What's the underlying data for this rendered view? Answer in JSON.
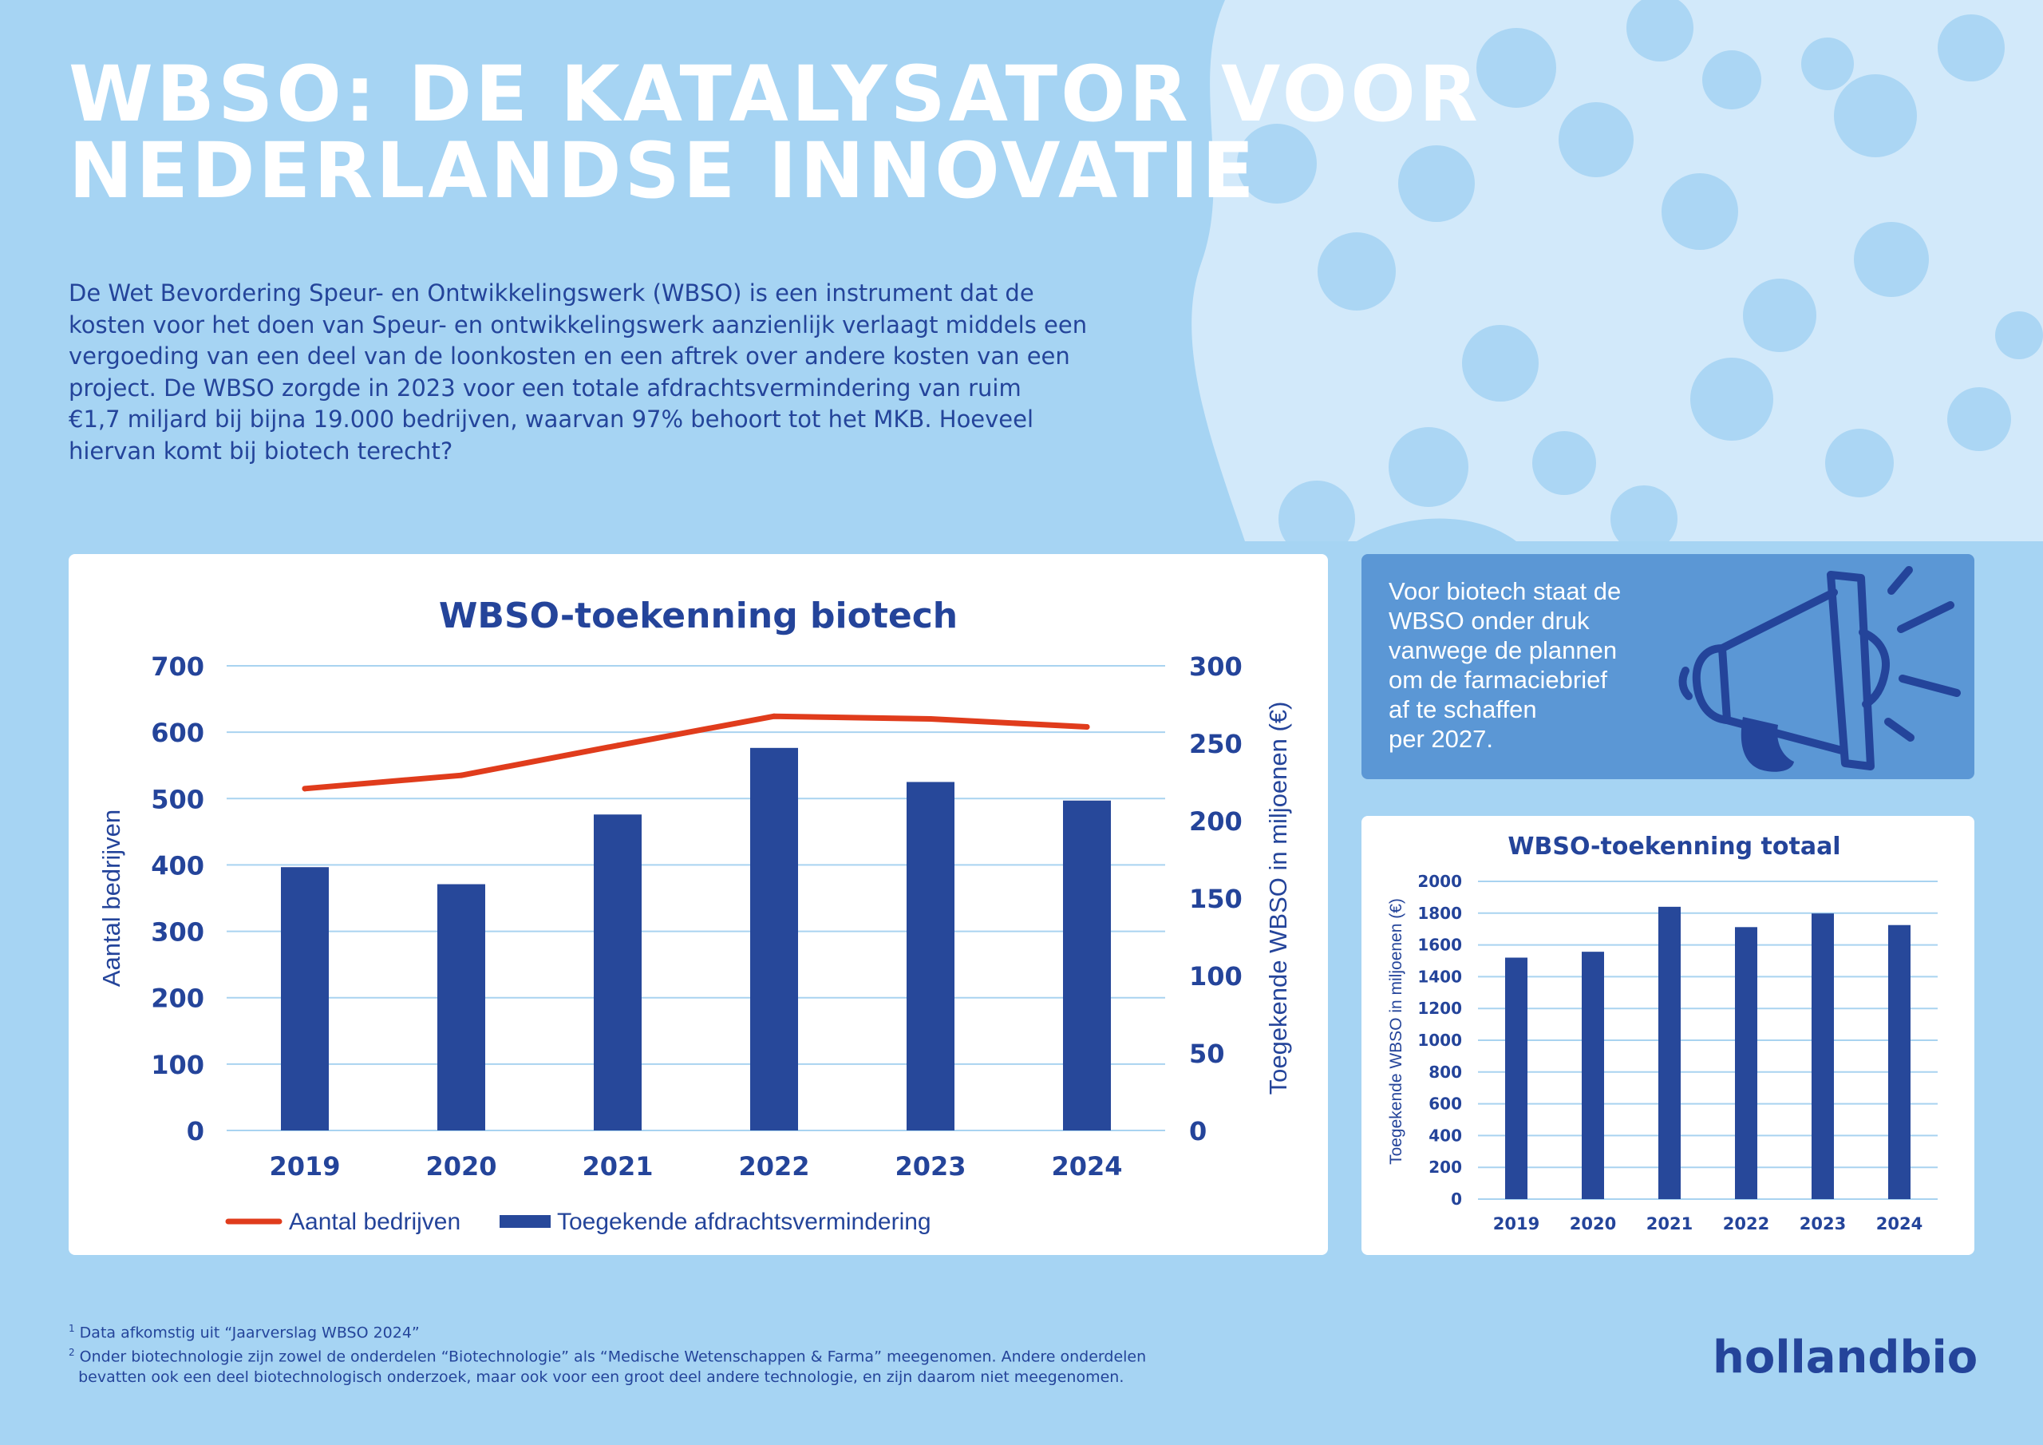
{
  "header": {
    "title_lines": [
      "WBSO: DE KATALYSATOR VOOR",
      "NEDERLANDSE INNOVATIE"
    ],
    "intro_lines": [
      "De Wet Bevordering Speur- en Ontwikkelingswerk (WBSO) is een instrument dat de",
      "kosten voor het doen van Speur- en ontwikkelingswerk aanzienlijk verlaagt middels een",
      "vergoeding van een deel van de loonkosten en een aftrek over andere kosten van een",
      "project. De WBSO zorgde in 2023 voor een totale afdrachtsvermindering van ruim",
      "€1,7 miljard bij bijna 19.000 bedrijven, waarvan 97% behoort tot het MKB. Hoeveel",
      "hiervan komt bij biotech terecht?"
    ]
  },
  "callout": {
    "lines": [
      "Voor biotech staat de",
      "WBSO onder druk",
      "vanwege de plannen",
      "om de farmaciebrief",
      "af te schaffen",
      "per 2027."
    ],
    "icon": "megaphone-icon"
  },
  "footnotes": [
    {
      "marker": "1",
      "lines": [
        "Data afkomstig uit “Jaarverslag WBSO 2024”"
      ]
    },
    {
      "marker": "2",
      "lines": [
        "Onder biotechnologie zijn zowel de onderdelen “Biotechnologie” als “Medische Wetenschappen & Farma” meegenomen. Andere onderdelen",
        "bevatten ook een deel biotechnologisch onderzoek, maar ook voor een groot deel andere technologie, en zijn daarom niet meegenomen."
      ]
    }
  ],
  "brand": {
    "logo_text": "hollandbio"
  },
  "colors": {
    "background": "#a6d4f3",
    "background_shape": "#d2e9fa",
    "navy": "#24449a",
    "bar": "#27489a",
    "line": "#e03c1c",
    "grid": "#a9d3f0",
    "callout": "#5b97d5"
  },
  "chart_data": [
    {
      "type": "bar+line",
      "title": "WBSO-toekenning biotech",
      "categories": [
        "2019",
        "2020",
        "2021",
        "2022",
        "2023",
        "2024"
      ],
      "series": [
        {
          "name": "Toegekende afdrachtsvermindering",
          "kind": "bar",
          "axis": "right",
          "values": [
            170,
            159,
            204,
            247,
            225,
            213
          ]
        },
        {
          "name": "Aantal bedrijven",
          "kind": "line",
          "axis": "left",
          "values": [
            515,
            535,
            580,
            624,
            620,
            608
          ]
        }
      ],
      "y_left": {
        "label": "Aantal bedrijven",
        "range": [
          0,
          700
        ],
        "ticks": [
          0,
          100,
          200,
          300,
          400,
          500,
          600,
          700
        ]
      },
      "y_right": {
        "label": "Toegekende WBSO in miljoenen (€)",
        "range": [
          0,
          300
        ],
        "ticks": [
          0,
          50,
          100,
          150,
          200,
          250,
          300
        ]
      },
      "grid": true,
      "legend": "bottom-left",
      "legend_order": [
        "Aantal bedrijven",
        "Toegekende afdrachtsvermindering"
      ]
    },
    {
      "type": "bar",
      "title": "WBSO-toekenning totaal",
      "categories": [
        "2019",
        "2020",
        "2021",
        "2022",
        "2023",
        "2024"
      ],
      "values": [
        1520,
        1557,
        1840,
        1712,
        1798,
        1725
      ],
      "ylabel": "Toegekende WBSO in miljoenen (€)",
      "ylim": [
        0,
        2000
      ],
      "yticks": [
        0,
        200,
        400,
        600,
        800,
        1000,
        1200,
        1400,
        1600,
        1800,
        2000
      ],
      "grid": true
    }
  ]
}
